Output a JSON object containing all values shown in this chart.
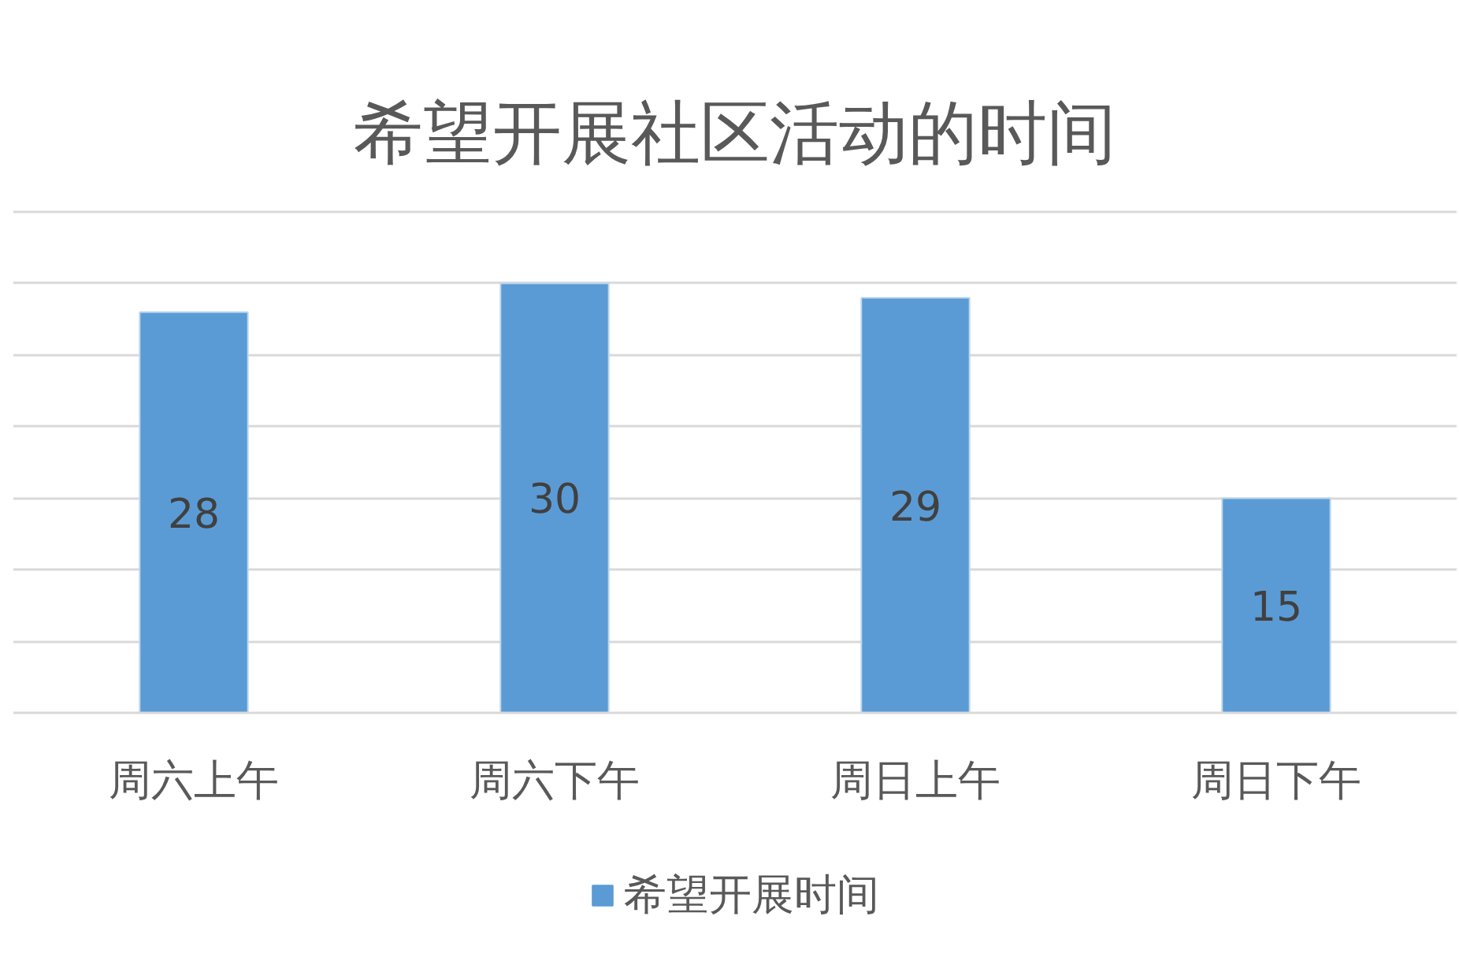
{
  "chart_data": {
    "type": "bar",
    "title": "希望开展社区活动的时间",
    "categories": [
      "周六上午",
      "周六下午",
      "周日上午",
      "周日下午"
    ],
    "series": [
      {
        "name": "希望开展时间",
        "color": "#5b9bd5",
        "values": [
          28,
          30,
          29,
          15
        ]
      }
    ],
    "ylim": [
      0,
      35
    ],
    "yticks": [
      {
        "value": 0,
        "label": null
      },
      {
        "value": 5,
        "label": null
      },
      {
        "value": 10,
        "label": null
      },
      {
        "value": 15,
        "label": null
      },
      {
        "value": 20,
        "label": null
      },
      {
        "value": 25,
        "label": null
      },
      {
        "value": 30,
        "label": null
      },
      {
        "value": 35,
        "label": null
      }
    ],
    "tick_labels": "x",
    "grid": "y",
    "legend": "bottom",
    "data_labels": true
  }
}
